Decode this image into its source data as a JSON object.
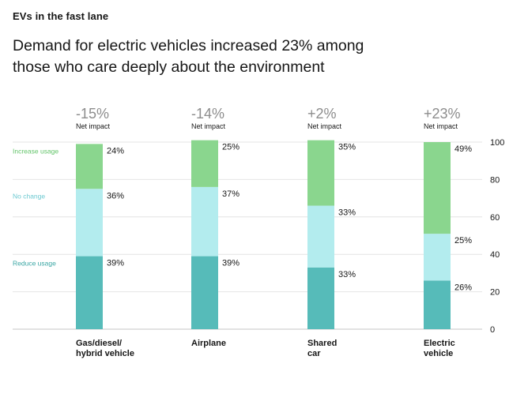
{
  "kicker": "EVs in the fast lane",
  "headline": "Demand for electric vehicles increased 23% among those who care deeply about the environment",
  "colors": {
    "increase": "#8ad68e",
    "no_change": "#b3ecee",
    "reduce": "#56bbb9",
    "impact_text": "#8d8d8d",
    "grid": "#e4e4e4"
  },
  "chart_data": {
    "type": "bar",
    "stacked": true,
    "categories": [
      "Gas/diesel/\nhybrid vehicle",
      "Airplane",
      "Shared\ncar",
      "Electric\nvehicle"
    ],
    "series": [
      {
        "name": "Reduce usage",
        "values": [
          39,
          39,
          33,
          26
        ]
      },
      {
        "name": "No change",
        "values": [
          36,
          37,
          33,
          25
        ]
      },
      {
        "name": "Increase usage",
        "values": [
          24,
          25,
          35,
          49
        ]
      }
    ],
    "net_impact": [
      "-15%",
      "-14%",
      "+2%",
      "+23%"
    ],
    "net_impact_label": "Net impact",
    "ylim": [
      0,
      100
    ],
    "yticks": [
      0,
      20,
      40,
      60,
      80,
      100
    ],
    "yaxis_position": "right",
    "legend_position": "left, aligned with bar segments",
    "grid": true
  }
}
